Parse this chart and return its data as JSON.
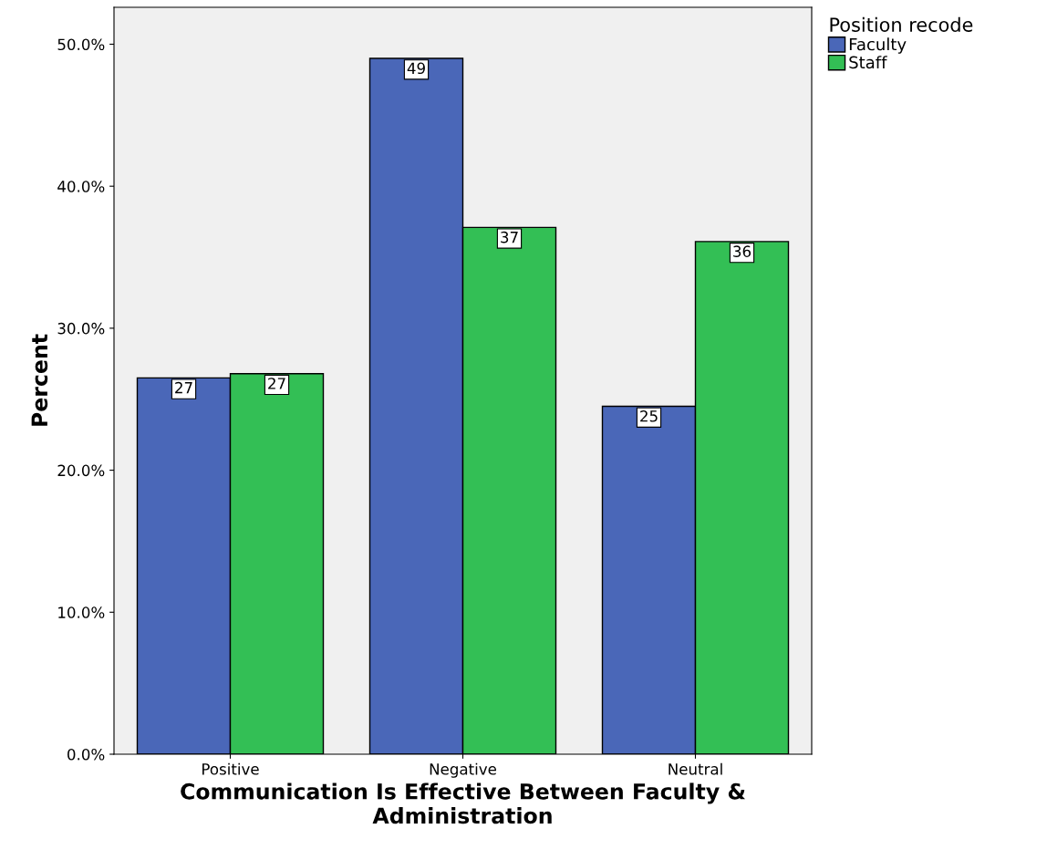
{
  "chart_data": {
    "type": "bar",
    "categories": [
      "Positive",
      "Negative",
      "Neutral"
    ],
    "xlabel": "Communication Is Effective Between Faculty &\nAdministration",
    "ylabel": "Percent",
    "legend_title": "Position recode",
    "series": [
      {
        "name": "Faculty",
        "color": "#4a67b8",
        "values": [
          26.5,
          49.0,
          24.5
        ],
        "value_labels": [
          "27",
          "49",
          "25"
        ]
      },
      {
        "name": "Staff",
        "color": "#33bf55",
        "values": [
          26.8,
          37.1,
          36.1
        ],
        "value_labels": [
          "27",
          "37",
          "36"
        ]
      }
    ],
    "ylim": [
      0,
      52.6
    ],
    "yticks": [
      {
        "value": 0,
        "label": "0.0%"
      },
      {
        "value": 10,
        "label": "10.0%"
      },
      {
        "value": 20,
        "label": "20.0%"
      },
      {
        "value": 30,
        "label": "30.0%"
      },
      {
        "value": 40,
        "label": "40.0%"
      },
      {
        "value": 50,
        "label": "50.0%"
      }
    ],
    "grid": false,
    "legend": "top right"
  }
}
